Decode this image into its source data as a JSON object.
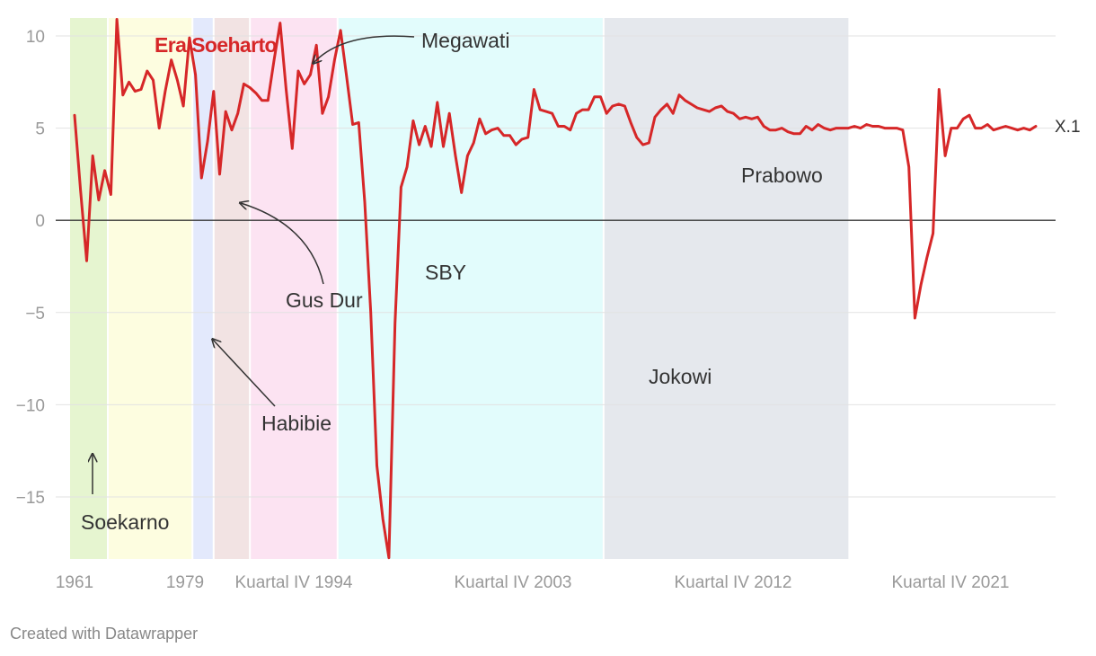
{
  "chart_data": {
    "type": "line",
    "ylim": [
      -18.5,
      10.5
    ],
    "y_ticks": [
      10,
      5,
      0,
      -5,
      -10,
      -15
    ],
    "y_tick_labels": [
      "10",
      "5",
      "0",
      "−5",
      "−10",
      "−15"
    ],
    "x_tick_labels": [
      "1961",
      "1979",
      "Kuartal IV 1994",
      "Kuartal IV 2003",
      "Kuartal IV 2012",
      "Kuartal IV 2021"
    ],
    "grid": true,
    "zero_line": true,
    "series": [
      {
        "name": "X.1",
        "color": "#d62728",
        "values": [
          5.7,
          1.6,
          -2.2,
          3.5,
          1.1,
          2.7,
          1.4,
          10.9,
          6.8,
          7.5,
          7.0,
          7.1,
          8.1,
          7.6,
          5.0,
          7.0,
          8.7,
          7.6,
          6.2,
          9.9,
          7.9,
          2.3,
          4.3,
          7.0,
          2.5,
          5.9,
          4.9,
          5.8,
          7.4,
          7.2,
          6.9,
          6.5,
          6.5,
          8.7,
          10.7,
          7.1,
          3.9,
          8.1,
          7.4,
          7.9,
          9.5,
          5.8,
          6.7,
          8.7,
          10.3,
          7.8,
          5.2,
          5.3,
          1.0,
          -5.0,
          -13.3,
          -16.2,
          -18.3,
          -5.6,
          1.8,
          2.9,
          5.4,
          4.1,
          5.1,
          4.0,
          6.4,
          4.0,
          5.8,
          3.5,
          1.5,
          3.5,
          4.2,
          5.5,
          4.7,
          4.9,
          5.0,
          4.6,
          4.6,
          4.1,
          4.4,
          4.5,
          7.1,
          6.0,
          5.9,
          5.8,
          5.1,
          5.1,
          4.9,
          5.8,
          6.0,
          6.0,
          6.7,
          6.7,
          5.8,
          6.2,
          6.3,
          6.2,
          5.3,
          4.5,
          4.1,
          4.2,
          5.6,
          6.0,
          6.3,
          5.8,
          6.8,
          6.5,
          6.3,
          6.1,
          6.0,
          5.9,
          6.1,
          6.2,
          5.9,
          5.8,
          5.5,
          5.6,
          5.5,
          5.6,
          5.1,
          4.9,
          4.9,
          5.0,
          4.8,
          4.7,
          4.7,
          5.1,
          4.9,
          5.2,
          5.0,
          4.9,
          5.0,
          5.0,
          5.0,
          5.1,
          5.0,
          5.2,
          5.1,
          5.1,
          5.0,
          5.0,
          5.0,
          4.9,
          2.9,
          -5.3,
          -3.5,
          -2.0,
          -0.7,
          7.1,
          3.5,
          5.0,
          5.0,
          5.5,
          5.7,
          5.0,
          5.0,
          5.2,
          4.9,
          5.0,
          5.1,
          5.0,
          4.9,
          5.0,
          4.9,
          5.1
        ]
      }
    ],
    "bands": [
      {
        "label": "Soekarno",
        "color": "#e6f5d0",
        "start": 0,
        "end": 5.5
      },
      {
        "label": "Era Soeharto",
        "color": "#fdfde0",
        "start": 5.5,
        "end": 19.5
      },
      {
        "label": "Habibie",
        "color": "#e3e9fc",
        "start": 19.5,
        "end": 23
      },
      {
        "label": "Gus Dur",
        "color": "#f2e3e3",
        "start": 23,
        "end": 29
      },
      {
        "label": "Megawati",
        "color": "#fce3f2",
        "start": 29,
        "end": 43.5
      },
      {
        "label": "SBY",
        "color": "#e2fcfc",
        "start": 43.5,
        "end": 87.5
      },
      {
        "label": "Jokowi",
        "color": "#e5e8ed",
        "start": 87.5,
        "end": 128
      },
      {
        "label": "Prabowo",
        "color": "#ffffff",
        "start": 128,
        "end": 128
      }
    ],
    "annotations": [
      {
        "label": "Soekarno",
        "style": "plain"
      },
      {
        "label": "Era Soeharto",
        "style": "red"
      },
      {
        "label": "Habibie",
        "style": "plain"
      },
      {
        "label": "Gus Dur",
        "style": "plain"
      },
      {
        "label": "Megawati",
        "style": "plain"
      },
      {
        "label": "SBY",
        "style": "plain"
      },
      {
        "label": "Jokowi",
        "style": "plain"
      },
      {
        "label": "Prabowo",
        "style": "plain"
      }
    ]
  },
  "credit": "Created with Datawrapper"
}
